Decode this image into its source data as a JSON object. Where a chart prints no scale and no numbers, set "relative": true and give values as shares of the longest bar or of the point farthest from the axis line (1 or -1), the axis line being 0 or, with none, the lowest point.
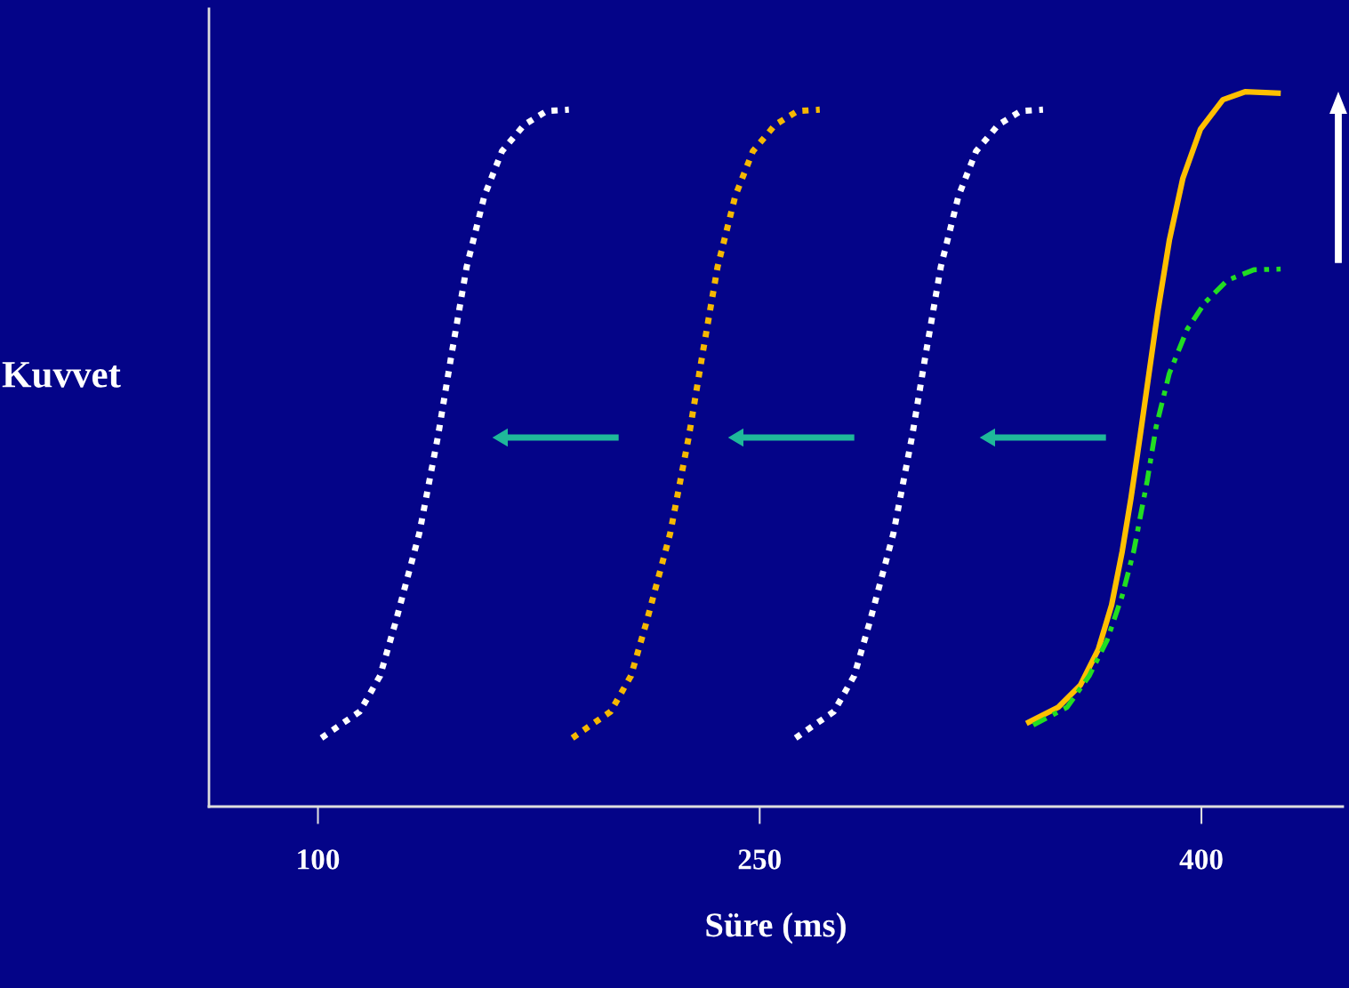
{
  "chart_data": {
    "type": "line",
    "relative": true,
    "xlabel": "Süre (ms)",
    "ylabel": "Kuvvet",
    "xlim": [
      63,
      448
    ],
    "xticks": [
      100,
      250,
      400
    ],
    "grid": false,
    "legend": false,
    "series": [
      {
        "color": "#ffffff",
        "line_style": "dotted",
        "x": [
          101.2,
          114.2,
          121.1,
          126.3,
          134.4,
          140.8,
          145.3,
          150.5,
          156.5,
          162.5,
          170.1,
          177.6,
          185.2
        ],
        "values": [
          0.096,
          0.133,
          0.183,
          0.257,
          0.382,
          0.519,
          0.631,
          0.755,
          0.854,
          0.917,
          0.954,
          0.973,
          0.975
        ]
      },
      {
        "color": "#f5b800",
        "line_style": "dotted",
        "x": [
          186.4,
          199.4,
          206.3,
          211.5,
          219.6,
          226.0,
          230.5,
          235.7,
          241.7,
          247.7,
          255.3,
          262.8,
          270.4
        ],
        "values": [
          0.096,
          0.133,
          0.183,
          0.257,
          0.382,
          0.519,
          0.631,
          0.755,
          0.854,
          0.917,
          0.954,
          0.973,
          0.975
        ]
      },
      {
        "color": "#ffffff",
        "line_style": "dotted",
        "x": [
          262.2,
          275.2,
          282.1,
          287.3,
          295.4,
          301.8,
          306.3,
          311.5,
          317.5,
          323.5,
          331.1,
          338.6,
          346.2
        ],
        "values": [
          0.096,
          0.133,
          0.183,
          0.257,
          0.382,
          0.519,
          0.631,
          0.755,
          0.854,
          0.917,
          0.954,
          0.973,
          0.975
        ]
      },
      {
        "color": "#ffc000",
        "line_style": "solid",
        "x": [
          341.4,
          351.4,
          358.9,
          365.0,
          369.5,
          373.1,
          376.1,
          379.2,
          382.2,
          385.2,
          389.1,
          393.7,
          399.7,
          407.3,
          414.8,
          426.0
        ],
        "values": [
          0.118,
          0.139,
          0.17,
          0.22,
          0.282,
          0.357,
          0.432,
          0.519,
          0.606,
          0.693,
          0.792,
          0.879,
          0.948,
          0.989,
          1.0,
          0.998
        ]
      },
      {
        "color": "#22dd22",
        "line_style": "dashdot",
        "x": [
          342.9,
          354.4,
          361.9,
          368.0,
          373.1,
          377.0,
          381.6,
          384.6,
          389.1,
          395.2,
          401.2,
          408.7,
          417.8,
          426.9
        ],
        "values": [
          0.114,
          0.139,
          0.183,
          0.233,
          0.295,
          0.357,
          0.456,
          0.531,
          0.606,
          0.668,
          0.705,
          0.736,
          0.751,
          0.752
        ]
      }
    ]
  }
}
